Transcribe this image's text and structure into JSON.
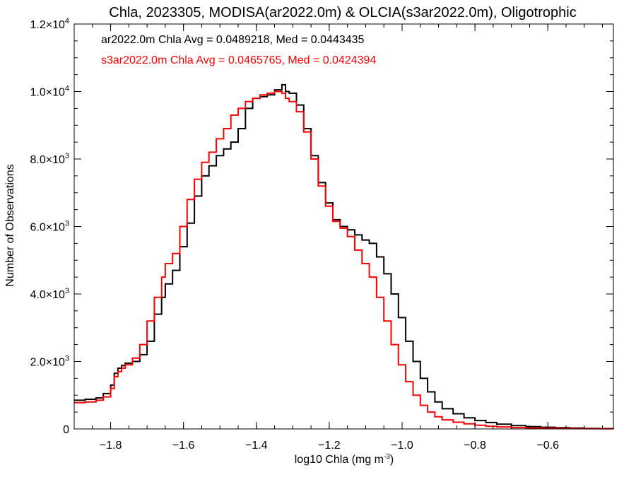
{
  "chart_data": {
    "type": "line",
    "title": "Chla, 2023305, MODISA(ar2022.0m) & OLCIA(s3ar2022.0m), Oligotrophic",
    "xlabel": "log10 Chla (mg m",
    "xlabel_sup": "-3",
    "xlabel_end": ")",
    "ylabel": "Number of Observations",
    "xlim": [
      -1.9,
      -0.42
    ],
    "ylim": [
      0,
      12000
    ],
    "grid": false,
    "step": true,
    "x_ticks": [
      {
        "value": -1.8,
        "label": "−1.8"
      },
      {
        "value": -1.6,
        "label": "−1.6"
      },
      {
        "value": -1.4,
        "label": "−1.4"
      },
      {
        "value": -1.2,
        "label": "−1.2"
      },
      {
        "value": -1.0,
        "label": "−1.0"
      },
      {
        "value": -0.8,
        "label": "−0.8"
      },
      {
        "value": -0.6,
        "label": "−0.6"
      }
    ],
    "y_ticks": [
      {
        "value": 0,
        "mant": "0",
        "exp": ""
      },
      {
        "value": 2000,
        "mant": "2.0×10",
        "exp": "3"
      },
      {
        "value": 4000,
        "mant": "4.0×10",
        "exp": "3"
      },
      {
        "value": 6000,
        "mant": "6.0×10",
        "exp": "3"
      },
      {
        "value": 8000,
        "mant": "8.0×10",
        "exp": "3"
      },
      {
        "value": 10000,
        "mant": "1.0×10",
        "exp": "4"
      },
      {
        "value": 12000,
        "mant": "1.2×10",
        "exp": "4"
      }
    ],
    "annotations": [
      {
        "text": "ar2022.0m Chla Avg = 0.0489218, Med = 0.0443435",
        "color": "#000000"
      },
      {
        "text": "s3ar2022.0m Chla Avg = 0.0465765, Med = 0.0424394",
        "color": "#ff0000"
      }
    ],
    "series": [
      {
        "color": "#000000",
        "x": [
          -1.9,
          -1.87,
          -1.84,
          -1.82,
          -1.8,
          -1.79,
          -1.78,
          -1.77,
          -1.76,
          -1.74,
          -1.72,
          -1.7,
          -1.68,
          -1.66,
          -1.65,
          -1.63,
          -1.61,
          -1.59,
          -1.57,
          -1.55,
          -1.53,
          -1.51,
          -1.49,
          -1.47,
          -1.45,
          -1.43,
          -1.41,
          -1.39,
          -1.37,
          -1.35,
          -1.33,
          -1.32,
          -1.31,
          -1.29,
          -1.27,
          -1.25,
          -1.23,
          -1.21,
          -1.19,
          -1.17,
          -1.15,
          -1.13,
          -1.11,
          -1.09,
          -1.07,
          -1.05,
          -1.03,
          -1.01,
          -0.99,
          -0.97,
          -0.95,
          -0.93,
          -0.91,
          -0.89,
          -0.86,
          -0.83,
          -0.8,
          -0.77,
          -0.74,
          -0.7,
          -0.66,
          -0.62,
          -0.58,
          -0.54,
          -0.5,
          -0.46,
          -0.42
        ],
        "y": [
          850,
          880,
          920,
          1050,
          1300,
          1650,
          1800,
          1880,
          1950,
          2000,
          2200,
          2600,
          3400,
          3900,
          4300,
          4700,
          5400,
          6100,
          6900,
          7500,
          7800,
          8100,
          8300,
          8500,
          8900,
          9500,
          9800,
          9850,
          9900,
          10050,
          10200,
          10000,
          9950,
          9600,
          8900,
          8100,
          7300,
          6700,
          6200,
          6000,
          5900,
          5750,
          5600,
          5500,
          5100,
          4600,
          4000,
          3300,
          2600,
          2000,
          1500,
          1100,
          800,
          600,
          450,
          330,
          250,
          190,
          140,
          100,
          70,
          50,
          35,
          25,
          15,
          10,
          5
        ]
      },
      {
        "color": "#ff0000",
        "x": [
          -1.9,
          -1.87,
          -1.84,
          -1.82,
          -1.8,
          -1.79,
          -1.78,
          -1.77,
          -1.76,
          -1.74,
          -1.72,
          -1.7,
          -1.68,
          -1.66,
          -1.65,
          -1.63,
          -1.61,
          -1.59,
          -1.57,
          -1.55,
          -1.53,
          -1.51,
          -1.49,
          -1.47,
          -1.45,
          -1.43,
          -1.41,
          -1.39,
          -1.37,
          -1.35,
          -1.33,
          -1.32,
          -1.31,
          -1.29,
          -1.27,
          -1.25,
          -1.23,
          -1.21,
          -1.19,
          -1.17,
          -1.15,
          -1.13,
          -1.11,
          -1.09,
          -1.07,
          -1.05,
          -1.03,
          -1.01,
          -0.99,
          -0.97,
          -0.95,
          -0.93,
          -0.91,
          -0.89,
          -0.86,
          -0.83,
          -0.8,
          -0.77,
          -0.74,
          -0.7,
          -0.66,
          -0.62,
          -0.58,
          -0.54,
          -0.5,
          -0.46,
          -0.42
        ],
        "y": [
          780,
          800,
          850,
          950,
          1200,
          1550,
          1700,
          1800,
          1900,
          2100,
          2500,
          3200,
          3900,
          4500,
          4900,
          5200,
          6000,
          6800,
          7400,
          7900,
          8200,
          8600,
          8900,
          9300,
          9500,
          9700,
          9800,
          9900,
          9950,
          10000,
          9950,
          9800,
          9700,
          9400,
          8800,
          8000,
          7200,
          6600,
          6150,
          5950,
          5700,
          5300,
          4900,
          4500,
          3900,
          3200,
          2500,
          1900,
          1400,
          1000,
          700,
          500,
          360,
          270,
          200,
          150,
          110,
          80,
          60,
          40,
          30,
          20,
          15,
          10,
          8,
          5,
          3
        ]
      }
    ]
  }
}
